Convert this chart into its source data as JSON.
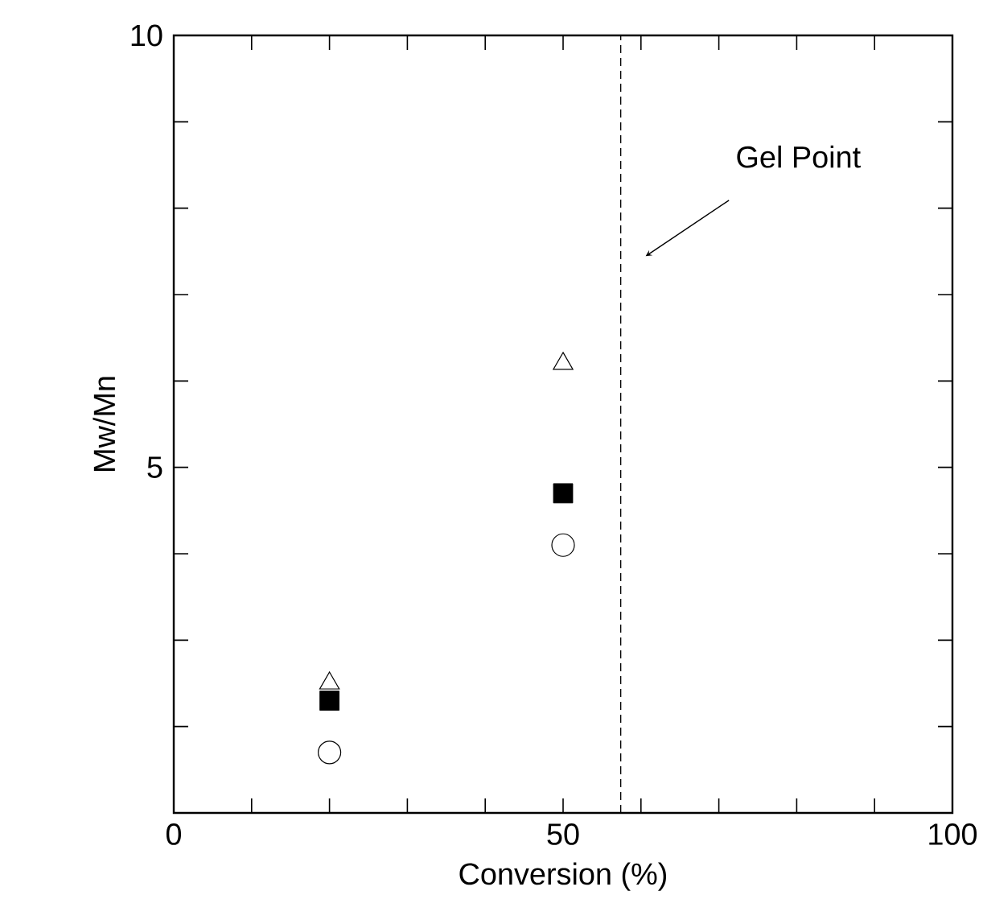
{
  "chart_data": {
    "type": "scatter",
    "xlabel": "Conversion (%)",
    "ylabel": "Mw/Mn",
    "x": [
      20,
      50
    ],
    "series": [
      {
        "color": "#000000",
        "marker": "triangle",
        "values": [
          2.5,
          6.2
        ]
      },
      {
        "color": "#000000",
        "marker": "square",
        "values": [
          2.3,
          4.7
        ]
      },
      {
        "color": "#000000",
        "marker": "circle",
        "values": [
          1.7,
          4.1
        ]
      }
    ],
    "xlim": [
      0,
      100
    ],
    "ylim": [
      1,
      10
    ],
    "xticks": [
      0,
      {
        "value": 10,
        "label": null
      },
      {
        "value": 20,
        "label": null
      },
      {
        "value": 30,
        "label": null
      },
      {
        "value": 40,
        "label": null
      },
      50,
      {
        "value": 60,
        "label": null
      },
      {
        "value": 70,
        "label": null
      },
      {
        "value": 80,
        "label": null
      },
      {
        "value": 90,
        "label": null
      },
      100
    ],
    "yticks": [
      {
        "value": 2,
        "label": null
      },
      {
        "value": 3,
        "label": null
      },
      {
        "value": 4,
        "label": null
      },
      5,
      {
        "value": 6,
        "label": null
      },
      {
        "value": 7,
        "label": null
      },
      {
        "value": 8,
        "label": null
      },
      {
        "value": 9,
        "label": null
      },
      10
    ],
    "ref_lines": [
      {
        "axis": "x",
        "value": 57.4,
        "line_style": "dashed",
        "label": "Gel Point"
      }
    ],
    "grid": false
  }
}
